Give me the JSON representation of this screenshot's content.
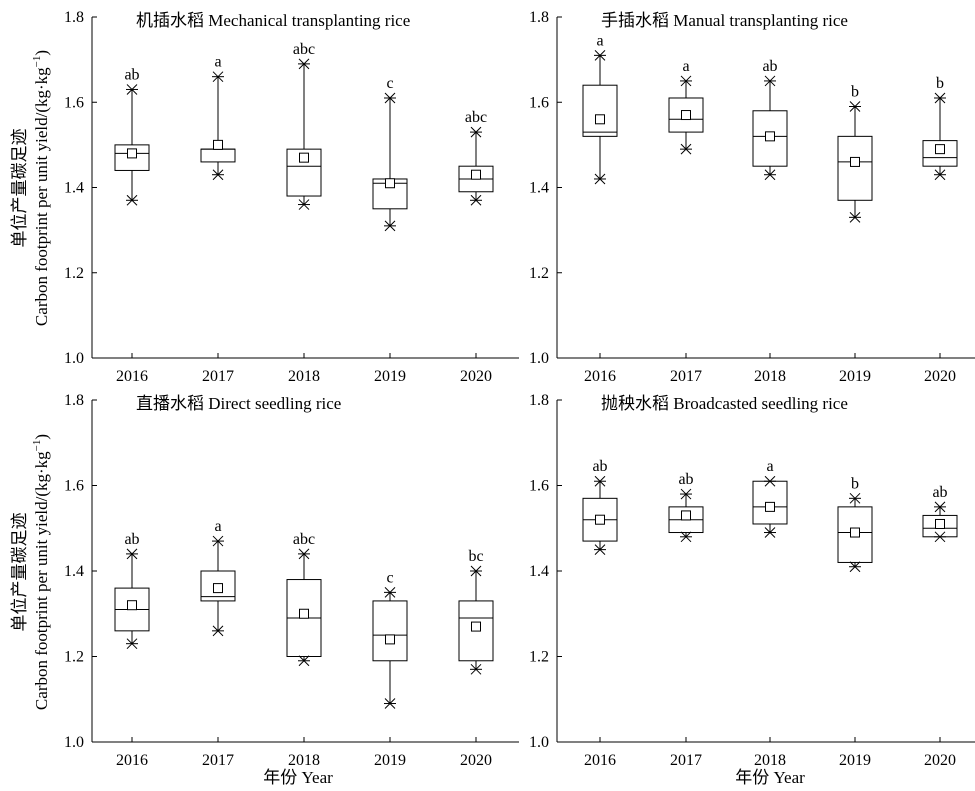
{
  "figure": {
    "ylabel_cn": "单位产量碳足迹",
    "ylabel_en": "Carbon footprint per unit yield/(kg·kg",
    "ylabel_sup": "−1",
    "ylabel_close": ")",
    "xlabel": "年份 Year"
  },
  "chart_data": [
    {
      "type": "box",
      "title": "机插水稻 Mechanical transplanting rice",
      "categories": [
        "2016",
        "2017",
        "2018",
        "2019",
        "2020"
      ],
      "ylim": [
        1.0,
        1.8
      ],
      "yticks": [
        "1.0",
        "1.2",
        "1.4",
        "1.6",
        "1.8"
      ],
      "boxes": [
        {
          "q1": 1.44,
          "median": 1.48,
          "q3": 1.5,
          "mean": 1.48,
          "max": 1.63,
          "min": 1.37,
          "letter": "ab"
        },
        {
          "q1": 1.46,
          "median": 1.49,
          "q3": 1.49,
          "mean": 1.5,
          "max": 1.66,
          "min": 1.43,
          "letter": "a"
        },
        {
          "q1": 1.38,
          "median": 1.45,
          "q3": 1.49,
          "mean": 1.47,
          "max": 1.69,
          "min": 1.36,
          "letter": "abc"
        },
        {
          "q1": 1.35,
          "median": 1.41,
          "q3": 1.42,
          "mean": 1.41,
          "max": 1.61,
          "min": 1.31,
          "letter": "c"
        },
        {
          "q1": 1.39,
          "median": 1.42,
          "q3": 1.45,
          "mean": 1.43,
          "max": 1.53,
          "min": 1.37,
          "letter": "abc"
        }
      ]
    },
    {
      "type": "box",
      "title": "手插水稻 Manual transplanting rice",
      "categories": [
        "2016",
        "2017",
        "2018",
        "2019",
        "2020"
      ],
      "ylim": [
        1.0,
        1.8
      ],
      "yticks": [
        "1.0",
        "1.2",
        "1.4",
        "1.6",
        "1.8"
      ],
      "boxes": [
        {
          "q1": 1.52,
          "median": 1.53,
          "q3": 1.64,
          "mean": 1.56,
          "max": 1.71,
          "min": 1.42,
          "letter": "a"
        },
        {
          "q1": 1.53,
          "median": 1.56,
          "q3": 1.61,
          "mean": 1.57,
          "max": 1.65,
          "min": 1.49,
          "letter": "a"
        },
        {
          "q1": 1.45,
          "median": 1.52,
          "q3": 1.58,
          "mean": 1.52,
          "max": 1.65,
          "min": 1.43,
          "letter": "ab"
        },
        {
          "q1": 1.37,
          "median": 1.46,
          "q3": 1.52,
          "mean": 1.46,
          "max": 1.59,
          "min": 1.33,
          "letter": "b"
        },
        {
          "q1": 1.45,
          "median": 1.47,
          "q3": 1.51,
          "mean": 1.49,
          "max": 1.61,
          "min": 1.43,
          "letter": "b"
        }
      ]
    },
    {
      "type": "box",
      "title": "直播水稻 Direct seedling rice",
      "categories": [
        "2016",
        "2017",
        "2018",
        "2019",
        "2020"
      ],
      "ylim": [
        1.0,
        1.8
      ],
      "yticks": [
        "1.0",
        "1.2",
        "1.4",
        "1.6",
        "1.8"
      ],
      "boxes": [
        {
          "q1": 1.26,
          "median": 1.31,
          "q3": 1.36,
          "mean": 1.32,
          "max": 1.44,
          "min": 1.23,
          "letter": "ab"
        },
        {
          "q1": 1.33,
          "median": 1.34,
          "q3": 1.4,
          "mean": 1.36,
          "max": 1.47,
          "min": 1.26,
          "letter": "a"
        },
        {
          "q1": 1.2,
          "median": 1.29,
          "q3": 1.38,
          "mean": 1.3,
          "max": 1.44,
          "min": 1.19,
          "letter": "abc"
        },
        {
          "q1": 1.19,
          "median": 1.25,
          "q3": 1.33,
          "mean": 1.24,
          "max": 1.35,
          "min": 1.09,
          "letter": "c"
        },
        {
          "q1": 1.19,
          "median": 1.29,
          "q3": 1.33,
          "mean": 1.27,
          "max": 1.4,
          "min": 1.17,
          "letter": "bc"
        }
      ]
    },
    {
      "type": "box",
      "title": "抛秧水稻 Broadcasted seedling rice",
      "categories": [
        "2016",
        "2017",
        "2018",
        "2019",
        "2020"
      ],
      "ylim": [
        1.0,
        1.8
      ],
      "yticks": [
        "1.0",
        "1.2",
        "1.4",
        "1.6",
        "1.8"
      ],
      "boxes": [
        {
          "q1": 1.47,
          "median": 1.52,
          "q3": 1.57,
          "mean": 1.52,
          "max": 1.61,
          "min": 1.45,
          "letter": "ab"
        },
        {
          "q1": 1.49,
          "median": 1.52,
          "q3": 1.55,
          "mean": 1.53,
          "max": 1.58,
          "min": 1.48,
          "letter": "ab"
        },
        {
          "q1": 1.51,
          "median": 1.55,
          "q3": 1.61,
          "mean": 1.55,
          "max": 1.61,
          "min": 1.49,
          "letter": "a"
        },
        {
          "q1": 1.42,
          "median": 1.49,
          "q3": 1.55,
          "mean": 1.49,
          "max": 1.57,
          "min": 1.41,
          "letter": "b"
        },
        {
          "q1": 1.48,
          "median": 1.5,
          "q3": 1.53,
          "mean": 1.51,
          "max": 1.55,
          "min": 1.48,
          "letter": "ab"
        }
      ]
    }
  ]
}
